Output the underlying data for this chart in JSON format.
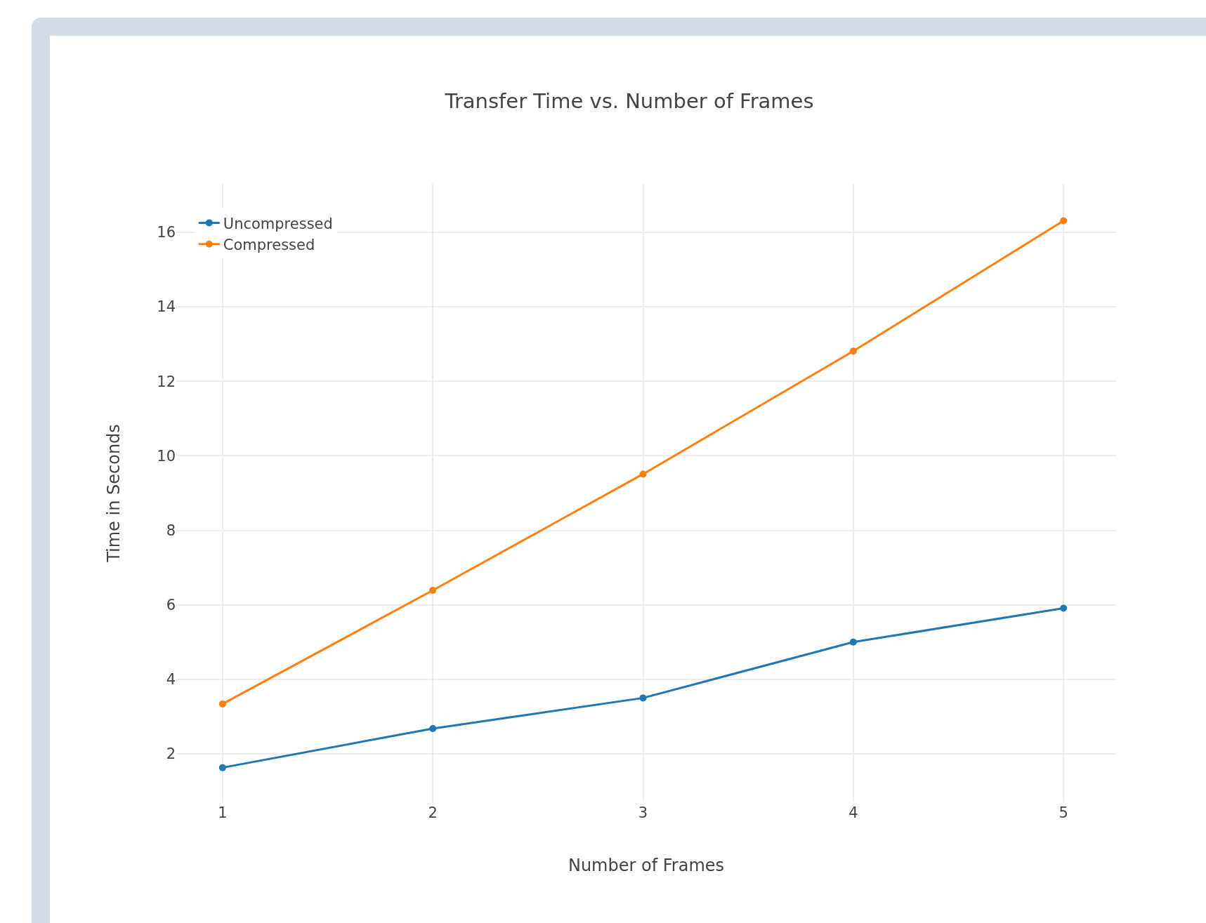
{
  "chart_data": {
    "type": "line",
    "title": "Transfer Time vs. Number of Frames",
    "xlabel": "Number of Frames",
    "ylabel": "Time in Seconds",
    "x": [
      1,
      2,
      3,
      4,
      5
    ],
    "series": [
      {
        "name": "Uncompressed",
        "color": "#1f77b4",
        "values": [
          1.63,
          2.68,
          3.5,
          5.0,
          5.91
        ]
      },
      {
        "name": "Compressed",
        "color": "#ff7f0e",
        "values": [
          3.34,
          6.39,
          9.51,
          12.81,
          16.31
        ]
      }
    ],
    "xlim": [
      0.78,
      5.25
    ],
    "xticks": [
      1,
      2,
      3,
      4,
      5
    ],
    "ylim": [
      0.7,
      17.3
    ],
    "yticks": [
      2,
      4,
      6,
      8,
      10,
      12,
      14,
      16
    ],
    "grid": true,
    "legend": "top left",
    "marker": "circle",
    "line_style": "solid"
  }
}
